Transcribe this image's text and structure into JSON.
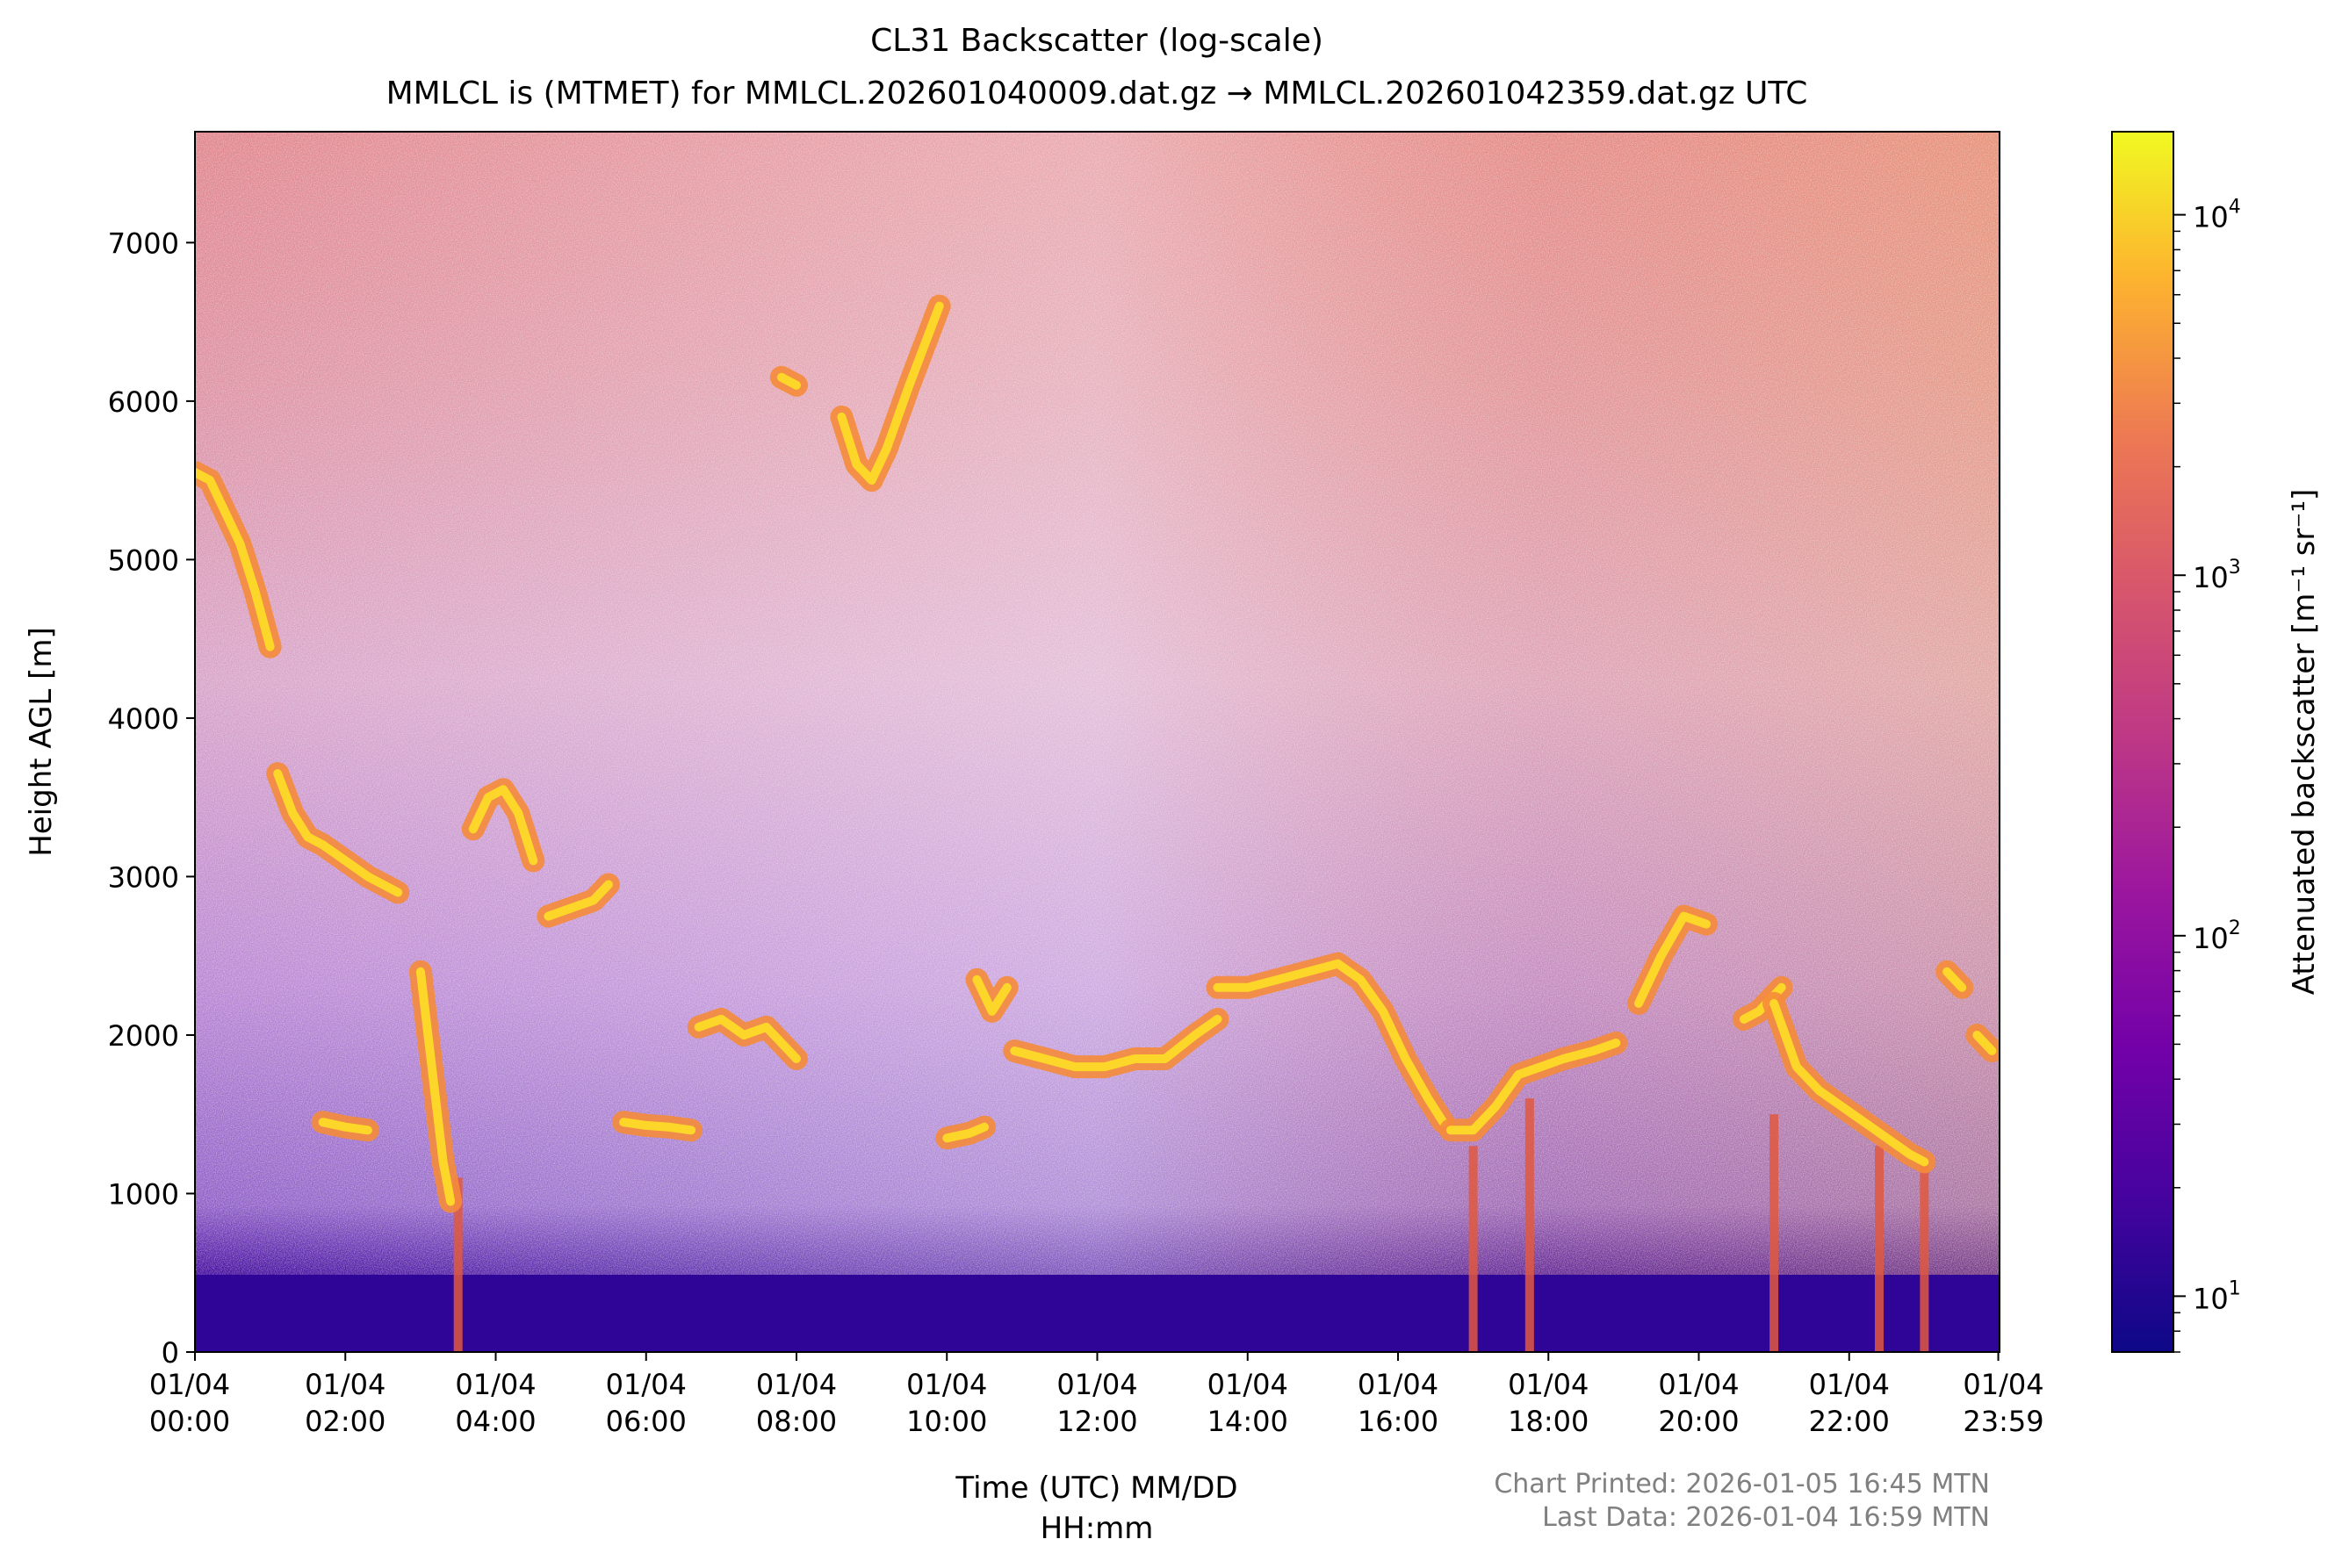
{
  "chart_data": {
    "type": "heatmap",
    "title": "CL31 Backscatter (log-scale)",
    "subtitle": "MMLCL is (MTMET) for MMLCL.202601040009.dat.gz → MMLCL.202601042359.dat.gz UTC",
    "xlabel_line1": "Time (UTC) MM/DD",
    "xlabel_line2": "HH:mm",
    "ylabel": "Height AGL [m]",
    "colorbar_label": "Attenuated backscatter [m⁻¹ sr⁻¹]",
    "colorscale": "plasma",
    "log_scale_color": true,
    "xlim": [
      "2026-01-04 00:00",
      "2026-01-04 23:59"
    ],
    "ylim": [
      0,
      7700
    ],
    "clim": [
      7,
      17000
    ],
    "x_ticks": [
      {
        "date": "01/04",
        "time": "00:00",
        "hours": 0
      },
      {
        "date": "01/04",
        "time": "02:00",
        "hours": 2
      },
      {
        "date": "01/04",
        "time": "04:00",
        "hours": 4
      },
      {
        "date": "01/04",
        "time": "06:00",
        "hours": 6
      },
      {
        "date": "01/04",
        "time": "08:00",
        "hours": 8
      },
      {
        "date": "01/04",
        "time": "10:00",
        "hours": 10
      },
      {
        "date": "01/04",
        "time": "12:00",
        "hours": 12
      },
      {
        "date": "01/04",
        "time": "14:00",
        "hours": 14
      },
      {
        "date": "01/04",
        "time": "16:00",
        "hours": 16
      },
      {
        "date": "01/04",
        "time": "18:00",
        "hours": 18
      },
      {
        "date": "01/04",
        "time": "20:00",
        "hours": 20
      },
      {
        "date": "01/04",
        "time": "22:00",
        "hours": 22
      },
      {
        "date": "01/04",
        "time": "23:59",
        "hours": 23.983
      }
    ],
    "y_ticks": [
      0,
      1000,
      2000,
      3000,
      4000,
      5000,
      6000,
      7000
    ],
    "colorbar_ticks": [
      {
        "value": 10,
        "base": "10",
        "exp": "1"
      },
      {
        "value": 100,
        "base": "10",
        "exp": "2"
      },
      {
        "value": 1000,
        "base": "10",
        "exp": "3"
      },
      {
        "value": 10000,
        "base": "10",
        "exp": "4"
      }
    ],
    "cloud_layers": [
      {
        "name": "layer-0003",
        "points": [
          [
            0.0,
            5550
          ],
          [
            0.2,
            5500
          ],
          [
            0.4,
            5300
          ],
          [
            0.6,
            5100
          ],
          [
            0.8,
            4800
          ],
          [
            1.0,
            4450
          ]
        ]
      },
      {
        "name": "layer-0105",
        "points": [
          [
            1.1,
            3650
          ],
          [
            1.3,
            3400
          ],
          [
            1.5,
            3250
          ],
          [
            1.7,
            3200
          ],
          [
            2.0,
            3100
          ],
          [
            2.3,
            3000
          ],
          [
            2.7,
            2900
          ]
        ]
      },
      {
        "name": "layer-0230",
        "points": [
          [
            1.7,
            1450
          ],
          [
            2.0,
            1420
          ],
          [
            2.3,
            1400
          ]
        ]
      },
      {
        "name": "layer-0320",
        "points": [
          [
            3.0,
            2400
          ],
          [
            3.1,
            2000
          ],
          [
            3.2,
            1600
          ],
          [
            3.3,
            1200
          ],
          [
            3.4,
            950
          ]
        ]
      },
      {
        "name": "layer-0400",
        "points": [
          [
            3.7,
            3300
          ],
          [
            3.9,
            3500
          ],
          [
            4.1,
            3550
          ],
          [
            4.3,
            3400
          ],
          [
            4.5,
            3100
          ]
        ]
      },
      {
        "name": "layer-0500",
        "points": [
          [
            4.7,
            2750
          ],
          [
            5.0,
            2800
          ],
          [
            5.3,
            2850
          ],
          [
            5.5,
            2950
          ]
        ]
      },
      {
        "name": "layer-0630",
        "points": [
          [
            5.7,
            1450
          ],
          [
            6.0,
            1430
          ],
          [
            6.3,
            1420
          ],
          [
            6.6,
            1400
          ]
        ]
      },
      {
        "name": "layer-0700",
        "points": [
          [
            6.7,
            2050
          ],
          [
            7.0,
            2100
          ],
          [
            7.3,
            2000
          ],
          [
            7.6,
            2050
          ],
          [
            8.0,
            1850
          ]
        ]
      },
      {
        "name": "layer-0800",
        "points": [
          [
            7.8,
            6150
          ],
          [
            8.0,
            6100
          ]
        ]
      },
      {
        "name": "layer-0900",
        "points": [
          [
            8.6,
            5900
          ],
          [
            8.8,
            5600
          ],
          [
            9.0,
            5500
          ],
          [
            9.2,
            5700
          ],
          [
            9.5,
            6100
          ],
          [
            9.9,
            6600
          ]
        ]
      },
      {
        "name": "layer-1000",
        "points": [
          [
            10.0,
            1350
          ],
          [
            10.3,
            1380
          ],
          [
            10.5,
            1420
          ]
        ]
      },
      {
        "name": "layer-1030",
        "points": [
          [
            10.4,
            2350
          ],
          [
            10.6,
            2150
          ],
          [
            10.8,
            2300
          ]
        ]
      },
      {
        "name": "layer-1130",
        "points": [
          [
            10.9,
            1900
          ],
          [
            11.3,
            1850
          ],
          [
            11.7,
            1800
          ],
          [
            12.1,
            1800
          ],
          [
            12.5,
            1850
          ],
          [
            12.9,
            1850
          ],
          [
            13.3,
            2000
          ],
          [
            13.6,
            2100
          ]
        ]
      },
      {
        "name": "layer-1400",
        "points": [
          [
            13.6,
            2300
          ],
          [
            14.0,
            2300
          ],
          [
            14.4,
            2350
          ],
          [
            14.8,
            2400
          ],
          [
            15.2,
            2450
          ],
          [
            15.5,
            2350
          ],
          [
            15.8,
            2150
          ],
          [
            16.1,
            1850
          ],
          [
            16.4,
            1600
          ],
          [
            16.6,
            1450
          ]
        ]
      },
      {
        "name": "layer-1640",
        "points": [
          [
            16.7,
            1400
          ],
          [
            17.0,
            1400
          ],
          [
            17.3,
            1550
          ],
          [
            17.6,
            1750
          ],
          [
            17.9,
            1800
          ],
          [
            18.2,
            1850
          ],
          [
            18.6,
            1900
          ],
          [
            18.9,
            1950
          ]
        ]
      },
      {
        "name": "layer-1930",
        "points": [
          [
            19.2,
            2200
          ],
          [
            19.5,
            2500
          ],
          [
            19.8,
            2750
          ],
          [
            20.1,
            2700
          ]
        ]
      },
      {
        "name": "layer-2040",
        "points": [
          [
            20.6,
            2100
          ],
          [
            20.8,
            2150
          ],
          [
            21.1,
            2300
          ]
        ]
      },
      {
        "name": "layer-2100",
        "points": [
          [
            21.0,
            2200
          ],
          [
            21.3,
            1800
          ],
          [
            21.6,
            1650
          ],
          [
            21.9,
            1550
          ],
          [
            22.2,
            1450
          ],
          [
            22.5,
            1350
          ],
          [
            22.8,
            1250
          ],
          [
            23.0,
            1200
          ]
        ]
      },
      {
        "name": "layer-2320",
        "points": [
          [
            23.3,
            2400
          ],
          [
            23.5,
            2300
          ]
        ]
      },
      {
        "name": "layer-2345",
        "points": [
          [
            23.7,
            2000
          ],
          [
            23.9,
            1900
          ]
        ]
      }
    ],
    "precip_streaks": [
      {
        "name": "streak-0330",
        "hour": 3.5,
        "top": 1100,
        "bottom": 0
      },
      {
        "name": "streak-1700",
        "hour": 17.0,
        "top": 1300,
        "bottom": 0
      },
      {
        "name": "streak-1745",
        "hour": 17.75,
        "top": 1600,
        "bottom": 0
      },
      {
        "name": "streak-2100",
        "hour": 21.0,
        "top": 1500,
        "bottom": 0
      },
      {
        "name": "streak-2230",
        "hour": 22.4,
        "top": 1300,
        "bottom": 0
      },
      {
        "name": "streak-2300",
        "hour": 23.0,
        "top": 1200,
        "bottom": 0
      }
    ]
  },
  "footer": {
    "printed": "Chart Printed: 2026-01-05 16:45 MTN",
    "last_data": "Last Data: 2026-01-04 16:59 MTN"
  }
}
